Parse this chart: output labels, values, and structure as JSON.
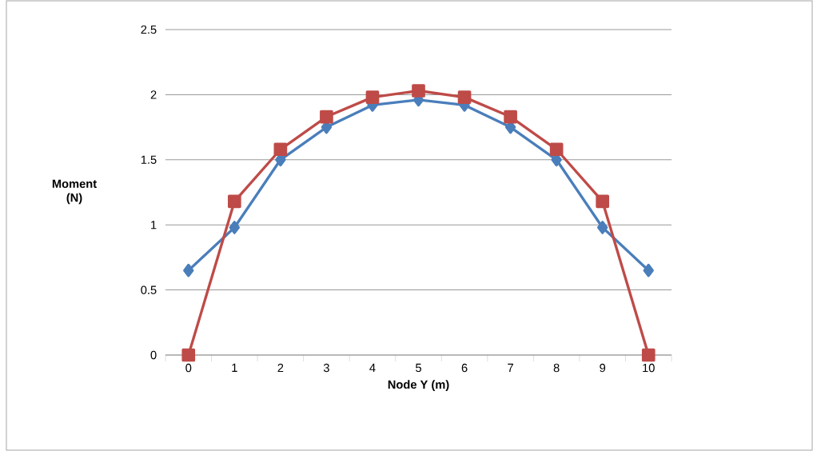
{
  "chart_data": {
    "type": "line",
    "xlabel": "Node Y (m)",
    "ylabel": "Moment (N)",
    "categories": [
      "0",
      "1",
      "2",
      "3",
      "4",
      "5",
      "6",
      "7",
      "8",
      "9",
      "10"
    ],
    "series": [
      {
        "color": "#4a7ebb",
        "marker": "diamond",
        "values": [
          0.65,
          0.98,
          1.5,
          1.75,
          1.92,
          1.96,
          1.92,
          1.75,
          1.5,
          0.98,
          0.65
        ]
      },
      {
        "color": "#be4b48",
        "marker": "square",
        "values": [
          0,
          1.18,
          1.58,
          1.83,
          1.98,
          2.03,
          1.98,
          1.83,
          1.58,
          1.18,
          0
        ]
      }
    ],
    "ylim": [
      0,
      2.5
    ],
    "yticks": [
      0,
      0.5,
      1,
      1.5,
      2,
      2.5
    ],
    "grid": "y",
    "line_style": "solid"
  }
}
